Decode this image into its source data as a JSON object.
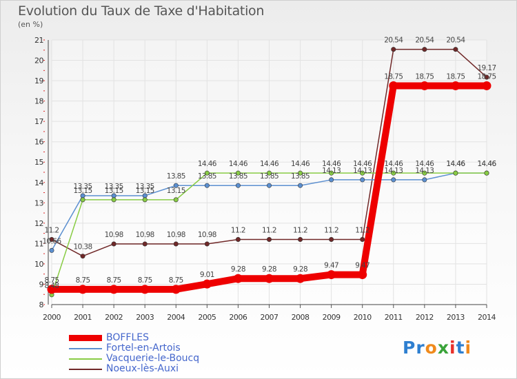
{
  "title": "Evolution du Taux de Taxe d'Habitation",
  "unit": "(en %)",
  "logo": {
    "text": "Proxiti",
    "colors": [
      "#2e7fd0",
      "#2e7fd0",
      "#f08a1c",
      "#39a339",
      "#e8302a",
      "#2e7fd0",
      "#f08a1c"
    ]
  },
  "chart_data": {
    "type": "line",
    "x": [
      2000,
      2001,
      2002,
      2003,
      2004,
      2005,
      2006,
      2007,
      2008,
      2009,
      2010,
      2011,
      2012,
      2013,
      2014
    ],
    "ylim": [
      8,
      21
    ],
    "yticks": [
      8,
      9,
      10,
      11,
      12,
      13,
      14,
      15,
      16,
      17,
      18,
      19,
      20,
      21
    ],
    "grid": true,
    "legend_position": "bottom-left",
    "series": [
      {
        "name": "BOFFLES",
        "color": "#ee0000",
        "values": [
          8.75,
          8.75,
          8.75,
          8.75,
          8.75,
          9.01,
          9.28,
          9.28,
          9.28,
          9.47,
          9.47,
          18.75,
          18.75,
          18.75,
          18.75
        ],
        "labels": [
          "8.75",
          "8.75",
          "8.75",
          "8.75",
          "8.75",
          "9.01",
          "9.28",
          "9.28",
          "9.28",
          "9.47",
          "9.47",
          "18.75",
          "18.75",
          "18.75",
          "18.75"
        ]
      },
      {
        "name": "Fortel-en-Artois",
        "color": "#5b8fd0",
        "values": [
          10.66,
          13.35,
          13.35,
          13.35,
          13.85,
          13.85,
          13.85,
          13.85,
          13.85,
          14.13,
          14.13,
          14.13,
          14.13,
          14.46,
          14.46
        ],
        "labels": [
          "10.66",
          "13.35",
          "13.35",
          "13.35",
          "13.85",
          "13.85",
          "13.85",
          "13.85",
          "13.85",
          "14.13",
          "14.13",
          "14.13",
          "14.13",
          "14.46",
          "14.46"
        ]
      },
      {
        "name": "Vacquerie-le-Boucq",
        "color": "#88cc44",
        "values": [
          8.48,
          13.15,
          13.15,
          13.15,
          13.15,
          14.46,
          14.46,
          14.46,
          14.46,
          14.46,
          14.46,
          14.46,
          14.46,
          14.46,
          14.46
        ],
        "labels": [
          "8.48",
          "13.15",
          "13.15",
          "13.15",
          "13.15",
          "14.46",
          "14.46",
          "14.46",
          "14.46",
          "14.46",
          "14.46",
          "14.46",
          "14.46",
          "14.46",
          "14.46"
        ]
      },
      {
        "name": "Noeux-lès-Auxi",
        "color": "#702828",
        "values": [
          11.2,
          10.38,
          10.98,
          10.98,
          10.98,
          10.98,
          11.2,
          11.2,
          11.2,
          11.2,
          11.2,
          20.54,
          20.54,
          20.54,
          19.17
        ],
        "labels": [
          "11.2",
          "10.38",
          "10.98",
          "10.98",
          "10.98",
          "10.98",
          "11.2",
          "11.2",
          "11.2",
          "11.2",
          "11.2",
          "20.54",
          "20.54",
          "20.54",
          "19.17"
        ]
      }
    ]
  }
}
